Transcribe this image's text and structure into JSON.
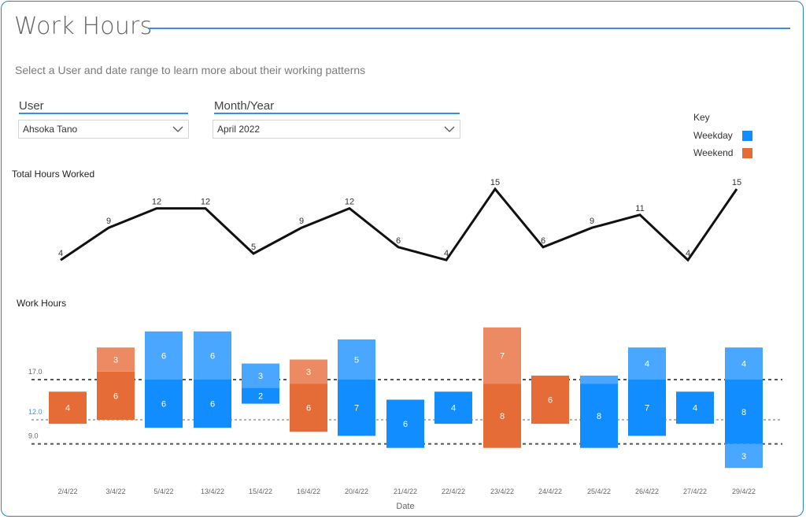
{
  "header": {
    "title": "Work Hours",
    "subtitle": "Select a User and date range to learn more about their working patterns"
  },
  "filters": {
    "user": {
      "label": "User",
      "value": "Ahsoka Tano"
    },
    "month": {
      "label": "Month/Year",
      "value": "April 2022"
    }
  },
  "key": {
    "title": "Key",
    "items": [
      {
        "label": "Weekday",
        "color": "#118dff"
      },
      {
        "label": "Weekend",
        "color": "#e66c37"
      }
    ]
  },
  "sections": {
    "total": "Total Hours Worked",
    "work": "Work Hours",
    "x_axis": "Date"
  },
  "colors": {
    "weekday": "#118dff",
    "weekday_light": "#4aa7ff",
    "weekend": "#e66c37",
    "weekend_light": "#ec8b63",
    "line": "#111111",
    "accent": "#3a8ee6"
  },
  "chart_data": [
    {
      "type": "line",
      "title": "Total Hours Worked",
      "x": [
        "2/4/22",
        "3/4/22",
        "5/4/22",
        "13/4/22",
        "15/4/22",
        "16/4/22",
        "20/4/22",
        "21/4/22",
        "22/4/22",
        "23/4/22",
        "24/4/22",
        "25/4/22",
        "26/4/22",
        "27/4/22",
        "29/4/22"
      ],
      "values": [
        4,
        9,
        12,
        12,
        5,
        9,
        12,
        6,
        4,
        15,
        6,
        9,
        11,
        4,
        15
      ],
      "data_labels": true
    },
    {
      "type": "bar",
      "title": "Work Hours",
      "xlabel": "Date",
      "ylabel": "",
      "categories": [
        "2/4/22",
        "3/4/22",
        "5/4/22",
        "13/4/22",
        "15/4/22",
        "16/4/22",
        "20/4/22",
        "21/4/22",
        "22/4/22",
        "23/4/22",
        "24/4/22",
        "25/4/22",
        "26/4/22",
        "27/4/22",
        "29/4/22"
      ],
      "day_type": [
        "weekend",
        "weekend",
        "weekday",
        "weekday",
        "weekday",
        "weekend",
        "weekday",
        "weekday",
        "weekday",
        "weekend",
        "weekend",
        "weekday",
        "weekday",
        "weekday",
        "weekday"
      ],
      "start_hour": [
        11.5,
        12,
        11,
        11,
        14,
        10.5,
        10,
        8.5,
        11.5,
        8.5,
        11.5,
        8.5,
        10,
        11.5,
        6
      ],
      "segments": [
        [
          4
        ],
        [
          6,
          3
        ],
        [
          6,
          6
        ],
        [
          6,
          6
        ],
        [
          2,
          3
        ],
        [
          6,
          3
        ],
        [
          7,
          5
        ],
        [
          6
        ],
        [
          4
        ],
        [
          8,
          7
        ],
        [
          6
        ],
        [
          8,
          1
        ],
        [
          7,
          4
        ],
        [
          4
        ],
        [
          3,
          8,
          4
        ]
      ],
      "reference_lines": [
        {
          "label": "17.0",
          "value": 17
        },
        {
          "label": "12.0",
          "value": 12
        },
        {
          "label": "9.0",
          "value": 9
        }
      ],
      "ylim": [
        5,
        23
      ]
    }
  ]
}
